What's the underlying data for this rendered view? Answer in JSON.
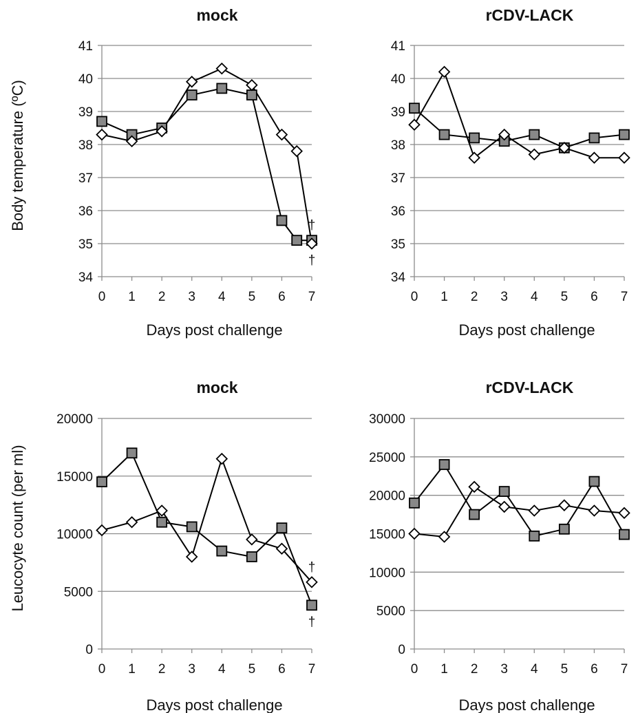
{
  "chart_data": [
    {
      "type": "line",
      "title": "mock",
      "xlabel": "Days post challenge",
      "ylabel": "Body temperature (ºC)",
      "xlim": [
        0,
        7
      ],
      "ylim": [
        34,
        41
      ],
      "yticks": [
        34,
        35,
        36,
        37,
        38,
        39,
        40,
        41
      ],
      "xticks": [
        0,
        1,
        2,
        3,
        4,
        5,
        6,
        7
      ],
      "grid": true,
      "series": [
        {
          "marker": "square",
          "color": "#888888",
          "x": [
            0,
            1,
            2,
            3,
            4,
            5,
            6,
            6.5,
            7
          ],
          "y": [
            38.7,
            38.3,
            38.5,
            39.5,
            39.7,
            39.5,
            35.7,
            35.1,
            35.1
          ]
        },
        {
          "marker": "diamond",
          "color": "#ffffff",
          "x": [
            0,
            1,
            2,
            3,
            4,
            5,
            6,
            6.5,
            7
          ],
          "y": [
            38.3,
            38.1,
            38.4,
            39.9,
            40.3,
            39.8,
            38.3,
            37.8,
            35.0
          ]
        }
      ],
      "annotations": [
        {
          "text": "†",
          "x": 7,
          "y": 35.1,
          "position": "above"
        },
        {
          "text": "†",
          "x": 7,
          "y": 35.0,
          "position": "below"
        }
      ]
    },
    {
      "type": "line",
      "title": "rCDV-LACK",
      "xlabel": "Days post challenge",
      "ylabel": "",
      "xlim": [
        0,
        7
      ],
      "ylim": [
        34,
        41
      ],
      "yticks": [
        34,
        35,
        36,
        37,
        38,
        39,
        40,
        41
      ],
      "xticks": [
        0,
        1,
        2,
        3,
        4,
        5,
        6,
        7
      ],
      "grid": true,
      "series": [
        {
          "marker": "square",
          "color": "#888888",
          "x": [
            0,
            1,
            2,
            3,
            4,
            5,
            6,
            7
          ],
          "y": [
            39.1,
            38.3,
            38.2,
            38.1,
            38.3,
            37.9,
            38.2,
            38.3
          ]
        },
        {
          "marker": "diamond",
          "color": "#ffffff",
          "x": [
            0,
            1,
            2,
            3,
            4,
            5,
            6,
            7
          ],
          "y": [
            38.6,
            40.2,
            37.6,
            38.3,
            37.7,
            37.9,
            37.6,
            37.6
          ]
        }
      ],
      "annotations": []
    },
    {
      "type": "line",
      "title": "mock",
      "xlabel": "Days post challenge",
      "ylabel": "Leucocyte count (per ml)",
      "xlim": [
        0,
        7
      ],
      "ylim": [
        0,
        20000
      ],
      "yticks": [
        0,
        5000,
        10000,
        15000,
        20000
      ],
      "xticks": [
        0,
        1,
        2,
        3,
        4,
        5,
        6,
        7
      ],
      "grid": true,
      "series": [
        {
          "marker": "square",
          "color": "#888888",
          "x": [
            0,
            1,
            2,
            3,
            4,
            5,
            6,
            7
          ],
          "y": [
            14500,
            17000,
            11000,
            10600,
            8500,
            8000,
            10500,
            3800
          ]
        },
        {
          "marker": "diamond",
          "color": "#ffffff",
          "x": [
            0,
            1,
            2,
            3,
            4,
            5,
            6,
            7
          ],
          "y": [
            10300,
            11000,
            12000,
            8000,
            16500,
            9500,
            8700,
            5800
          ]
        }
      ],
      "annotations": [
        {
          "text": "†",
          "x": 7,
          "y": 5800,
          "position": "above"
        },
        {
          "text": "†",
          "x": 7,
          "y": 3800,
          "position": "below"
        }
      ]
    },
    {
      "type": "line",
      "title": "rCDV-LACK",
      "xlabel": "Days post challenge",
      "ylabel": "",
      "xlim": [
        0,
        7
      ],
      "ylim": [
        0,
        30000
      ],
      "yticks": [
        0,
        5000,
        10000,
        15000,
        20000,
        25000,
        30000
      ],
      "xticks": [
        0,
        1,
        2,
        3,
        4,
        5,
        6,
        7
      ],
      "grid": true,
      "series": [
        {
          "marker": "square",
          "color": "#888888",
          "x": [
            0,
            1,
            2,
            3,
            4,
            5,
            6,
            7
          ],
          "y": [
            19000,
            24000,
            17500,
            20500,
            14700,
            15600,
            21800,
            14900
          ]
        },
        {
          "marker": "diamond",
          "color": "#ffffff",
          "x": [
            0,
            1,
            2,
            3,
            4,
            5,
            6,
            7
          ],
          "y": [
            15000,
            14600,
            21100,
            18500,
            18000,
            18700,
            18000,
            17700
          ]
        }
      ],
      "annotations": []
    }
  ]
}
